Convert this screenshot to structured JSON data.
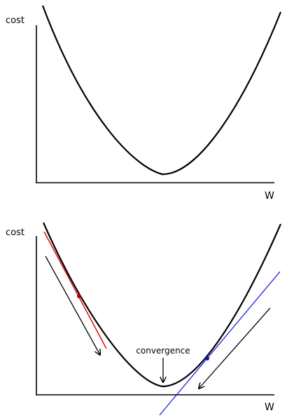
{
  "top_panel": {
    "y_label": "cost",
    "x_label": "W"
  },
  "bottom_panel": {
    "y_label": "cost",
    "x_label": "W",
    "annotation": "convergence"
  },
  "colors": {
    "curve": "#000000",
    "axes": "#000000",
    "left_tangent": "#e00000",
    "left_point": "#b00000",
    "right_tangent": "#1010dd",
    "right_point": "#1010cc",
    "step_arrows": "#000000"
  }
}
